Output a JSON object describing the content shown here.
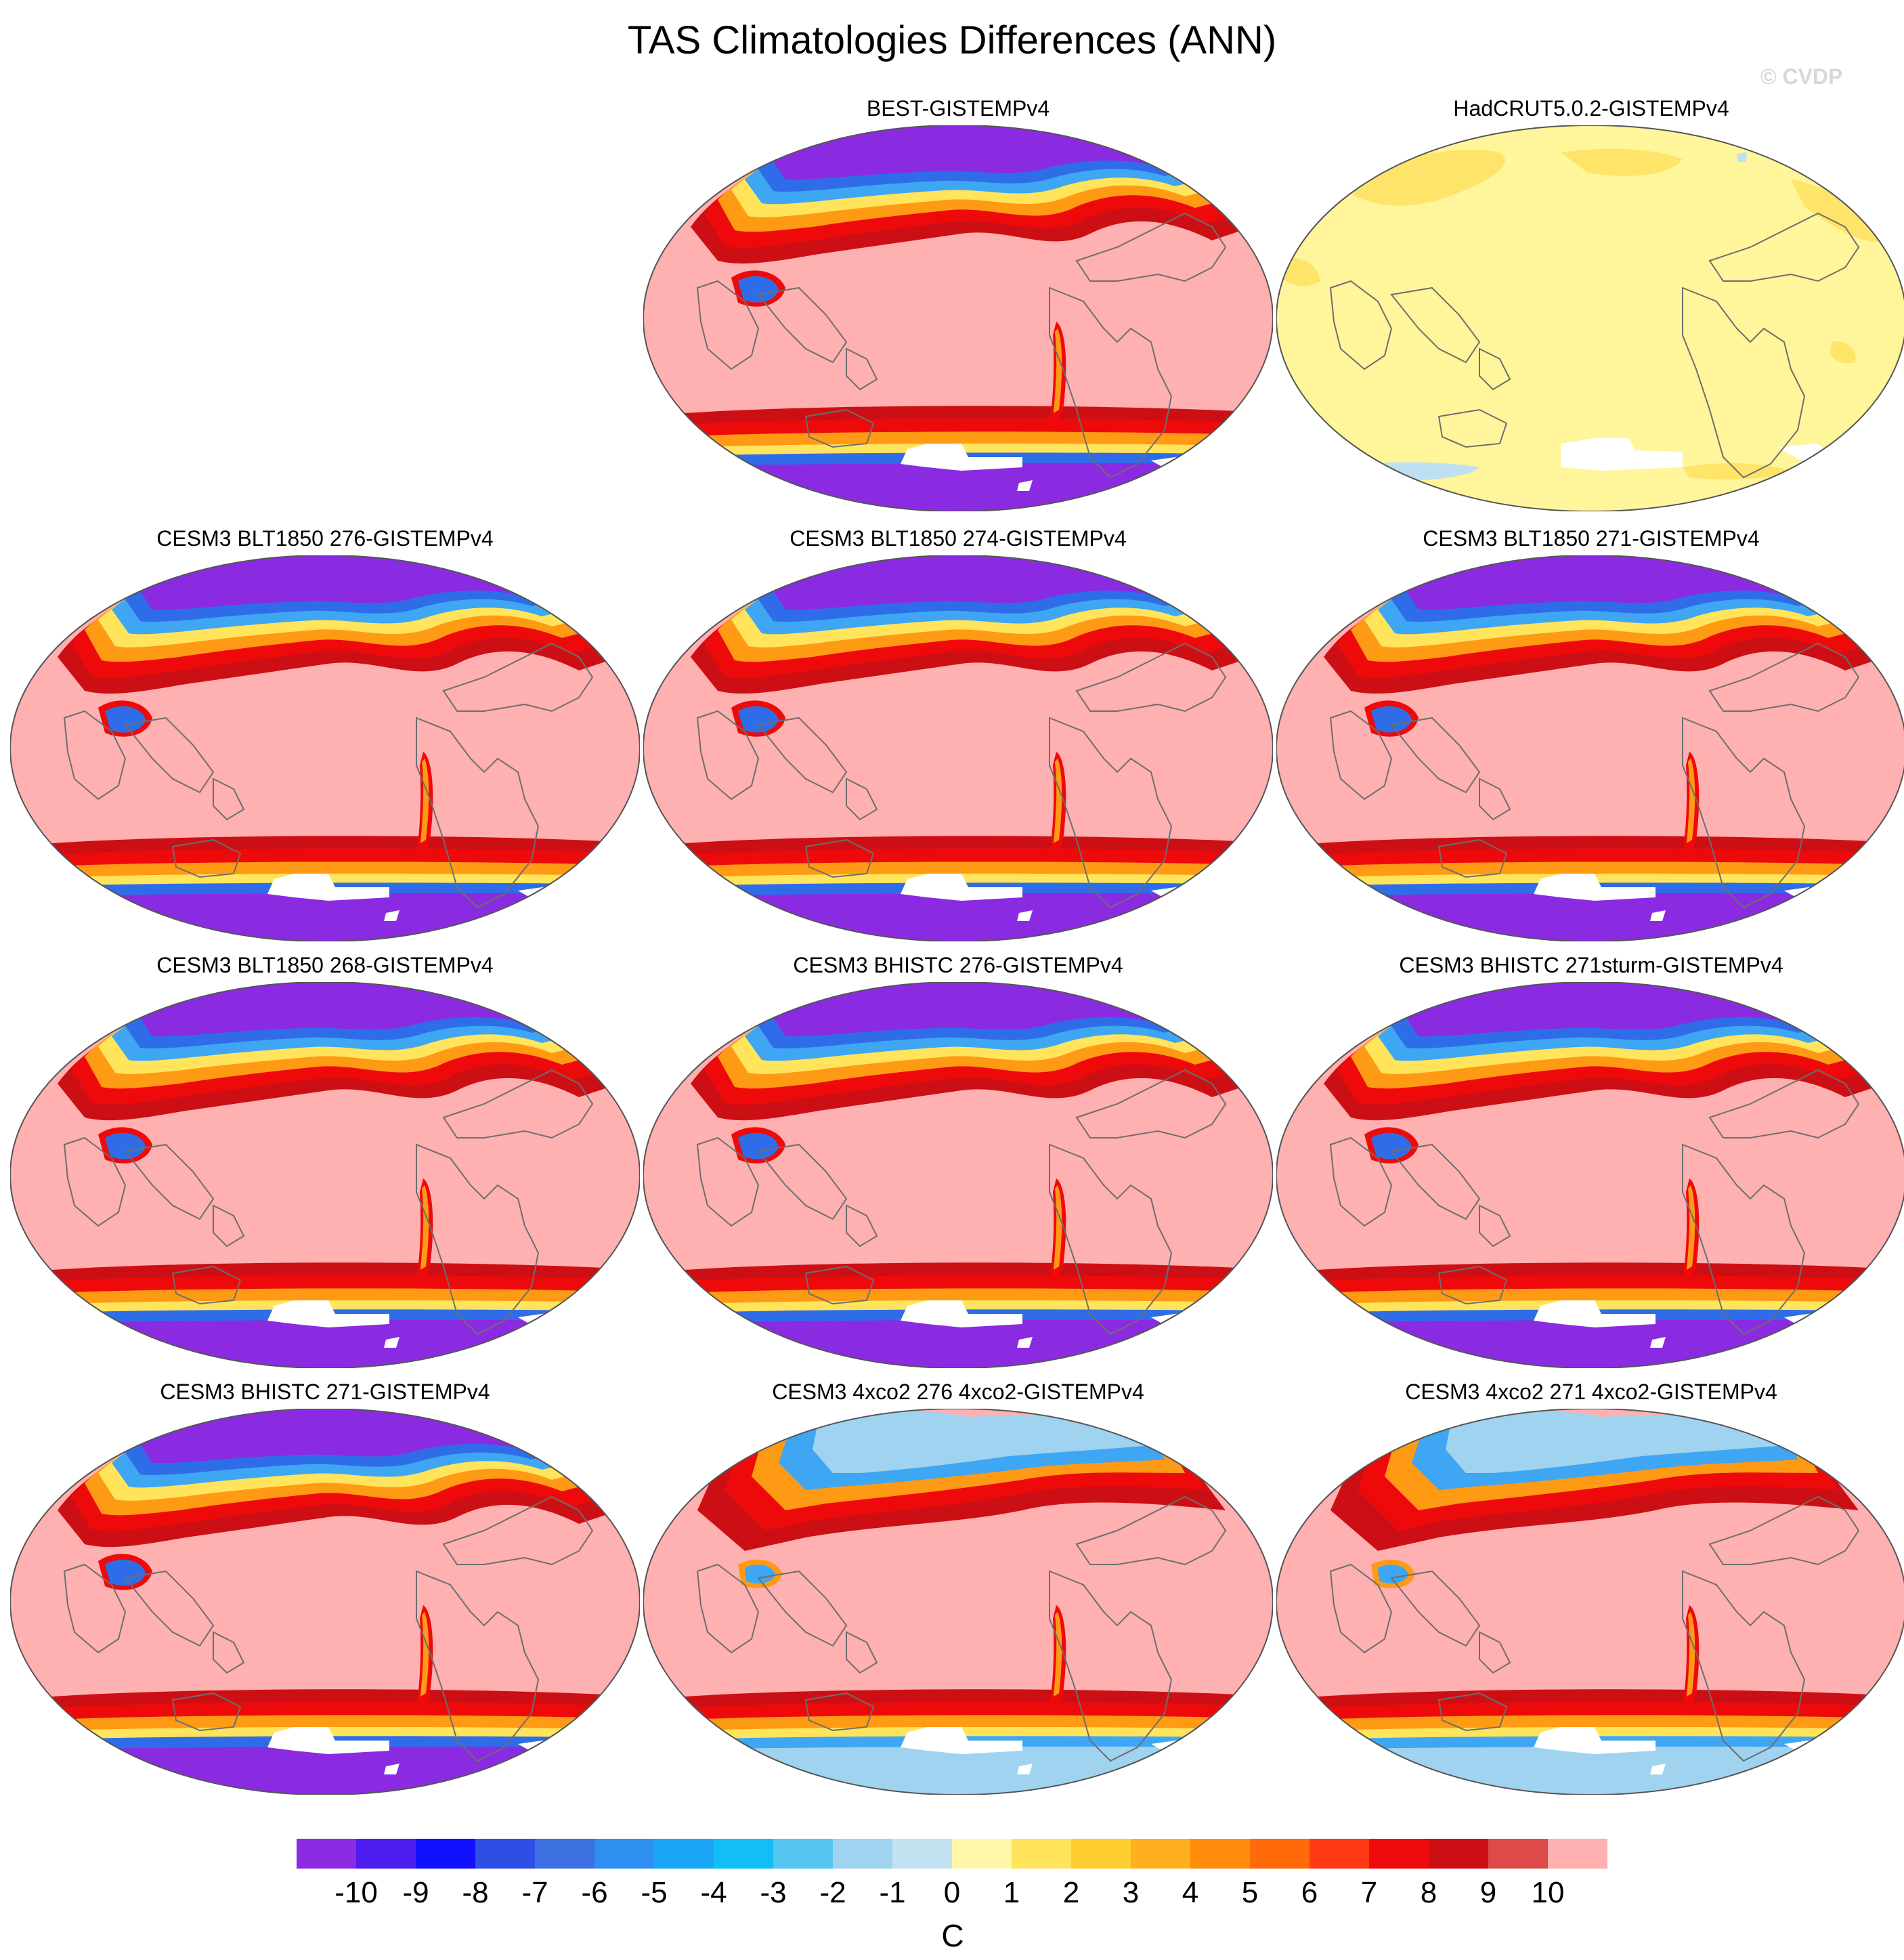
{
  "title": "TAS Climatologies Differences (ANN)",
  "watermark": "© CVDP",
  "panels": [
    {
      "label": "BEST-GISTEMPv4",
      "pattern": "extreme"
    },
    {
      "label": "HadCRUT5.0.2-GISTEMPv4",
      "pattern": "neutral"
    },
    {
      "label": "CESM3 BLT1850 276-GISTEMPv4",
      "pattern": "extreme"
    },
    {
      "label": "CESM3 BLT1850 274-GISTEMPv4",
      "pattern": "extreme"
    },
    {
      "label": "CESM3 BLT1850 271-GISTEMPv4",
      "pattern": "extreme"
    },
    {
      "label": "CESM3 BLT1850 268-GISTEMPv4",
      "pattern": "extreme"
    },
    {
      "label": "CESM3 BHISTC 276-GISTEMPv4",
      "pattern": "extreme"
    },
    {
      "label": "CESM3 BHISTC 271sturm-GISTEMPv4",
      "pattern": "extreme"
    },
    {
      "label": "CESM3 BHISTC 271-GISTEMPv4",
      "pattern": "extreme"
    },
    {
      "label": "CESM3 4xco2 276 4xco2-GISTEMPv4",
      "pattern": "4xco2"
    },
    {
      "label": "CESM3 4xco2 271 4xco2-GISTEMPv4",
      "pattern": "4xco2"
    }
  ],
  "colorbar": {
    "units": "C",
    "tick_labels": [
      "-10",
      "-9",
      "-8",
      "-7",
      "-6",
      "-5",
      "-4",
      "-3",
      "-2",
      "-1",
      "0",
      "1",
      "2",
      "3",
      "4",
      "5",
      "6",
      "7",
      "8",
      "9",
      "10"
    ],
    "colors": [
      "#8a2be2",
      "#4d1cf0",
      "#1010ff",
      "#2e4ee6",
      "#3c6fe0",
      "#2f8ff0",
      "#1aa5f5",
      "#12bef6",
      "#55c6f2",
      "#9fd3ef",
      "#c2e2f2",
      "#fff7a8",
      "#ffe45c",
      "#ffce30",
      "#ffb01e",
      "#ff8c0a",
      "#ff6a0a",
      "#ff3a14",
      "#ee0a0a",
      "#cc0f14",
      "#dc4a4a",
      "#ffb0b0"
    ]
  }
}
